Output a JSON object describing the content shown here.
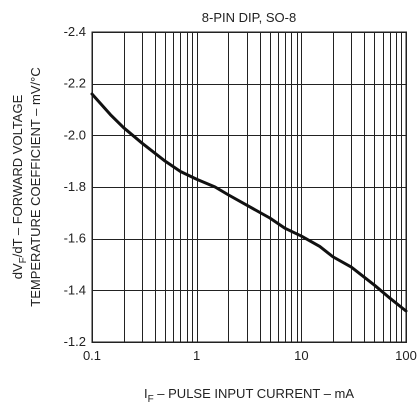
{
  "chart_data": {
    "type": "line",
    "title": "8-PIN DIP, SO-8",
    "xlabel_prefix": "I",
    "xlabel_sub": "F",
    "xlabel_rest": " – PULSE INPUT CURRENT – mA",
    "ylabel_line1_prefix": "dV",
    "ylabel_line1_sub": "F",
    "ylabel_line1_rest": "/dT – FORWARD VOLTAGE",
    "ylabel_line2": "TEMPERATURE COEFFICIENT – mV/°C",
    "x_scale": "log",
    "xlim": [
      0.1,
      100
    ],
    "ylim": [
      -1.2,
      -2.4
    ],
    "y_inverted": true,
    "grid": true,
    "x_ticks": [
      {
        "value": 0.1,
        "label": "0.1"
      },
      {
        "value": 1,
        "label": "1"
      },
      {
        "value": 10,
        "label": "10"
      },
      {
        "value": 100,
        "label": "100"
      }
    ],
    "y_ticks": [
      {
        "value": -2.4,
        "label": "-2.4"
      },
      {
        "value": -2.2,
        "label": "-2.2"
      },
      {
        "value": -2.0,
        "label": "-2.0"
      },
      {
        "value": -1.8,
        "label": "-1.8"
      },
      {
        "value": -1.6,
        "label": "-1.6"
      },
      {
        "value": -1.4,
        "label": "-1.4"
      },
      {
        "value": -1.2,
        "label": "-1.2"
      }
    ],
    "series": [
      {
        "x": [
          0.1,
          0.15,
          0.2,
          0.3,
          0.5,
          0.7,
          1,
          1.5,
          2,
          3,
          5,
          7,
          10,
          15,
          20,
          30,
          50,
          70,
          100
        ],
        "y": [
          -2.16,
          -2.08,
          -2.03,
          -1.97,
          -1.9,
          -1.86,
          -1.83,
          -1.8,
          -1.77,
          -1.73,
          -1.68,
          -1.64,
          -1.61,
          -1.57,
          -1.53,
          -1.49,
          -1.42,
          -1.37,
          -1.32
        ]
      }
    ]
  }
}
